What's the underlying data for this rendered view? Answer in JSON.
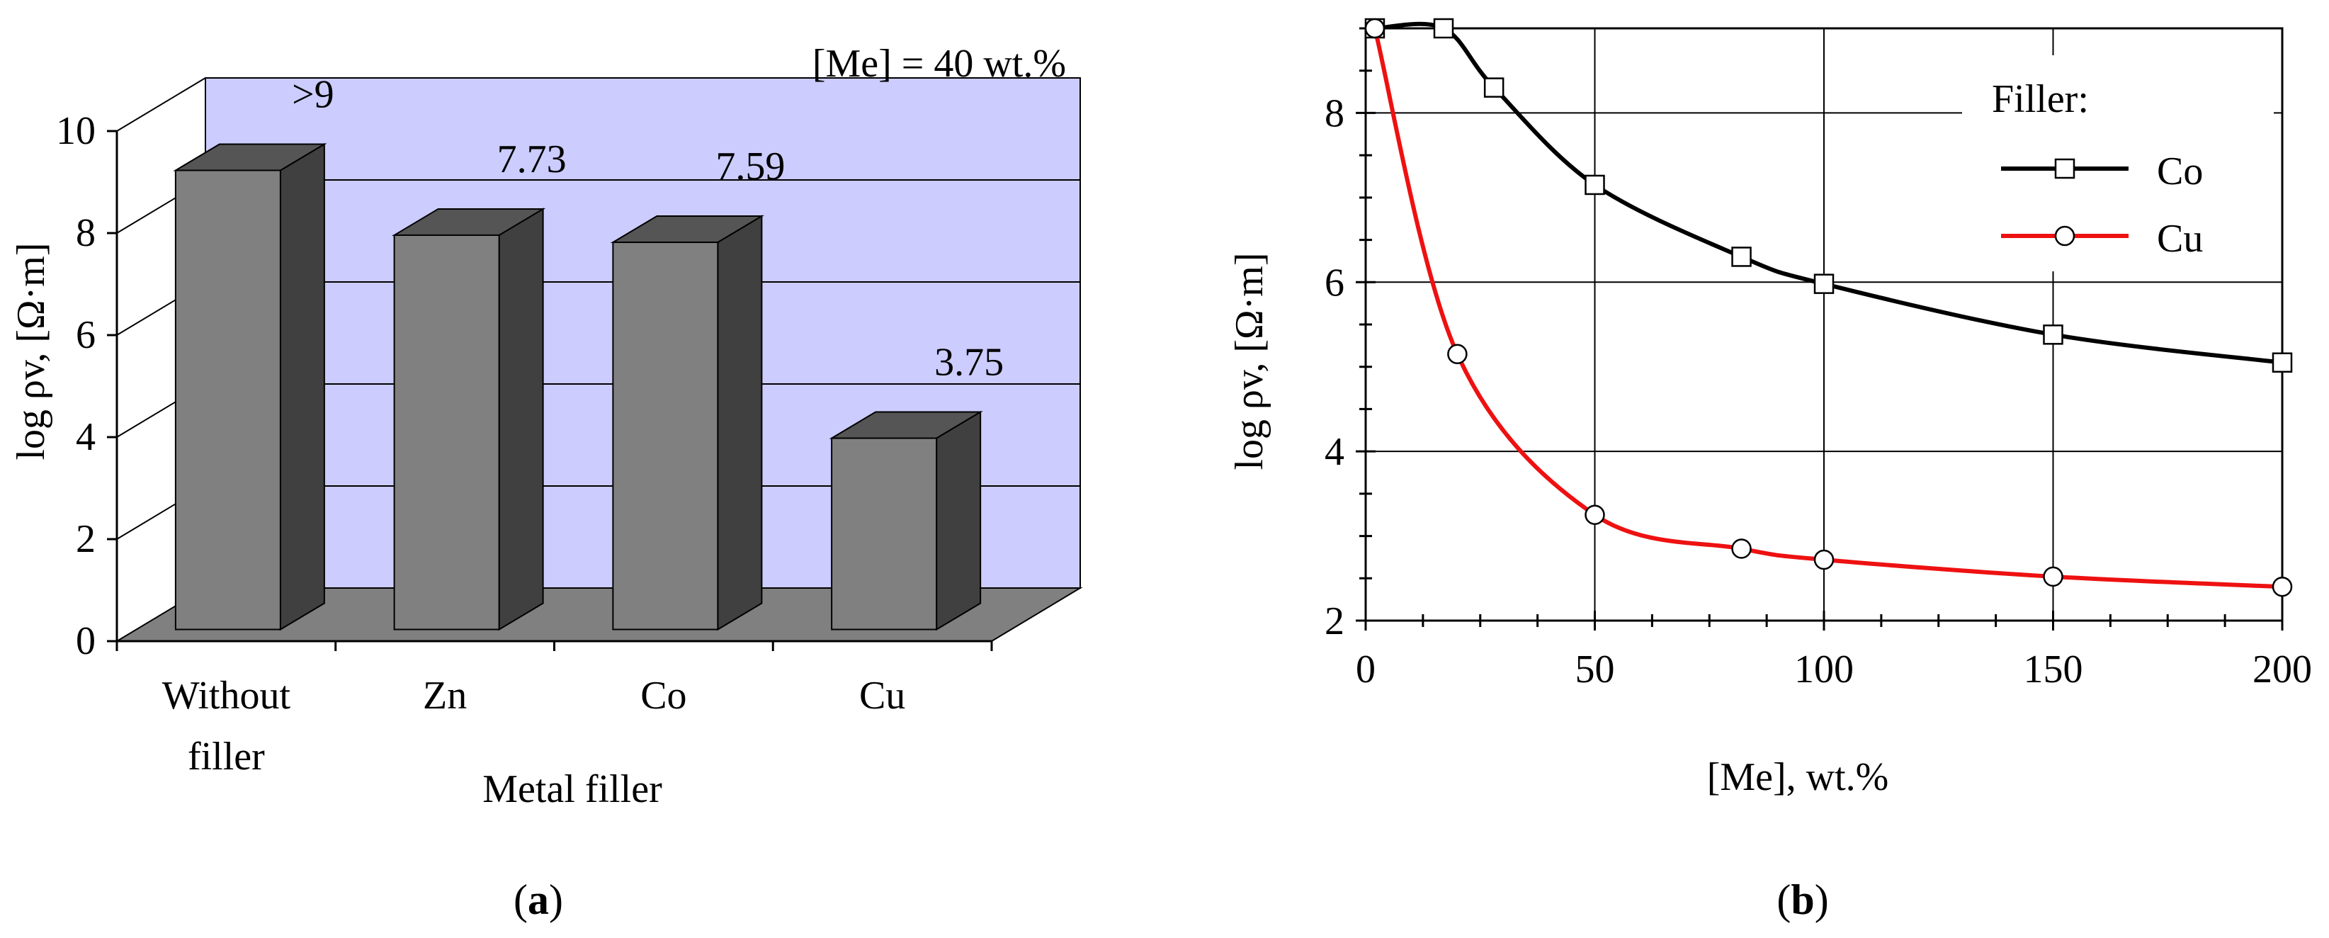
{
  "chart_data": [
    {
      "type": "bar",
      "panel_label": "a",
      "title": "",
      "annotation": "[Me] = 40 wt.%",
      "xlabel": "Metal filler",
      "ylabel": "log ρv, [Ω·m]",
      "categories": [
        "Without filler",
        "Zn",
        "Co",
        "Cu"
      ],
      "category_lines": [
        [
          "Without",
          "filler"
        ],
        [
          "Zn"
        ],
        [
          "Co"
        ],
        [
          "Cu"
        ]
      ],
      "values": [
        9,
        7.73,
        7.59,
        3.75
      ],
      "data_labels": [
        ">9",
        "7.73",
        "7.59",
        "3.75"
      ],
      "ylim": [
        0,
        10
      ],
      "yticks": [
        "0",
        "2",
        "4",
        "6",
        "8",
        "10"
      ],
      "grid": true,
      "colors": {
        "wall": "#ccccff",
        "floor": "#808080",
        "bar_front": "#808080",
        "bar_side": "#404040",
        "bar_top": "#555555"
      }
    },
    {
      "type": "line",
      "panel_label": "b",
      "title": "",
      "xlabel": "[Me], wt.%",
      "ylabel": "log ρv, [Ω·m]",
      "xlim": [
        0,
        200
      ],
      "ylim": [
        2,
        9
      ],
      "xticks": [
        "0",
        "50",
        "100",
        "150",
        "200"
      ],
      "yticks": [
        "2",
        "4",
        "6",
        "8"
      ],
      "grid": true,
      "legend_title": "Filler:",
      "legend_position": "top-right",
      "series": [
        {
          "name": "Co",
          "color": "#000000",
          "marker": "square",
          "x": [
            2,
            17,
            28,
            50,
            82,
            100,
            150,
            200
          ],
          "y": [
            9.0,
            9.0,
            8.3,
            7.15,
            6.3,
            5.98,
            5.38,
            5.05
          ]
        },
        {
          "name": "Cu",
          "color": "#ee1111",
          "marker": "circle",
          "x": [
            2,
            20,
            50,
            82,
            100,
            150,
            200
          ],
          "y": [
            9.0,
            5.15,
            3.25,
            2.85,
            2.72,
            2.52,
            2.4
          ]
        }
      ]
    }
  ]
}
